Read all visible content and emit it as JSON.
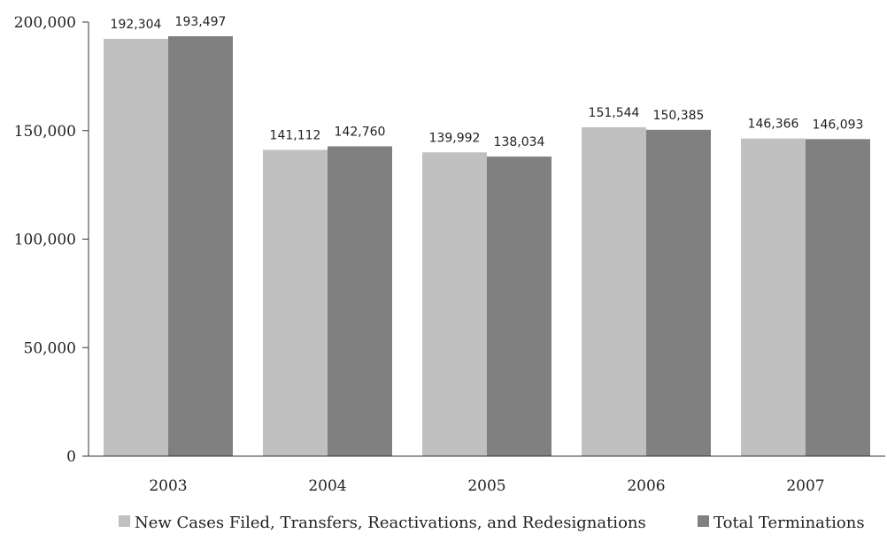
{
  "chart_data": {
    "type": "bar",
    "categories": [
      "2003",
      "2004",
      "2005",
      "2006",
      "2007"
    ],
    "series": [
      {
        "name": "New Cases Filed, Transfers, Reactivations, and Redesignations",
        "values": [
          192304,
          141112,
          139992,
          151544,
          146366
        ],
        "labels": [
          "192,304",
          "141,112",
          "139,992",
          "151,544",
          "146,366"
        ],
        "color": "#c0c0c0"
      },
      {
        "name": "Total Terminations",
        "values": [
          193497,
          142760,
          138034,
          150385,
          146093
        ],
        "labels": [
          "193,497",
          "142,760",
          "138,034",
          "150,385",
          "146,093"
        ],
        "color": "#808080"
      }
    ],
    "ylim": [
      0,
      200000
    ],
    "yticks": [
      0,
      50000,
      100000,
      150000,
      200000
    ],
    "ytick_labels": [
      "0",
      "50,000",
      "100,000",
      "150,000",
      "200,000"
    ],
    "grid": false,
    "legend_position": "bottom"
  }
}
